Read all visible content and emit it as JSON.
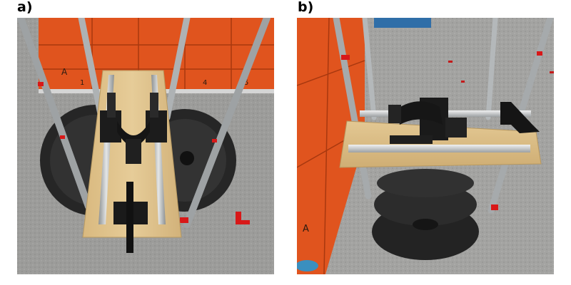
{
  "panels": [
    {
      "label": "a)",
      "lockers_lettering": [
        "A",
        "1",
        "4",
        "5"
      ]
    },
    {
      "label": "b)",
      "lockers_lettering": [
        "A"
      ]
    }
  ],
  "colors": {
    "locker_orange": "#e0541e",
    "floor_gray": "#9a9a98",
    "board_wood": "#dcc08a",
    "weight_plate": "#2b2b2b",
    "frame_aluminum": "#b8bcbe",
    "marker_red": "#d81818"
  }
}
